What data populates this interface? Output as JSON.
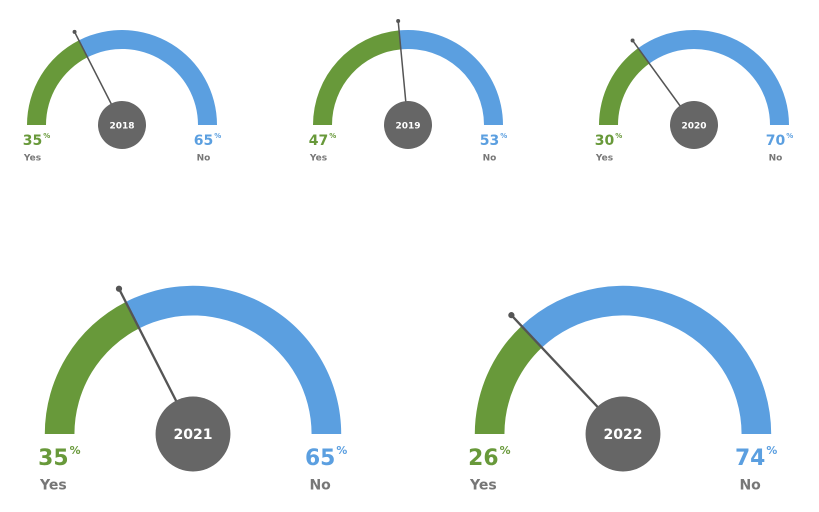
{
  "chart_data": [
    {
      "type": "gauge",
      "title": "2018",
      "categories": [
        "Yes",
        "No"
      ],
      "values": [
        35,
        65
      ],
      "colors": [
        "#68993a",
        "#5b9fe0"
      ],
      "unit": "%"
    },
    {
      "type": "gauge",
      "title": "2019",
      "categories": [
        "Yes",
        "No"
      ],
      "values": [
        47,
        53
      ],
      "colors": [
        "#68993a",
        "#5b9fe0"
      ],
      "unit": "%"
    },
    {
      "type": "gauge",
      "title": "2020",
      "categories": [
        "Yes",
        "No"
      ],
      "values": [
        30,
        70
      ],
      "colors": [
        "#68993a",
        "#5b9fe0"
      ],
      "unit": "%"
    },
    {
      "type": "gauge",
      "title": "2021",
      "categories": [
        "Yes",
        "No"
      ],
      "values": [
        35,
        65
      ],
      "colors": [
        "#68993a",
        "#5b9fe0"
      ],
      "unit": "%"
    },
    {
      "type": "gauge",
      "title": "2022",
      "categories": [
        "Yes",
        "No"
      ],
      "values": [
        26,
        74
      ],
      "colors": [
        "#68993a",
        "#5b9fe0"
      ],
      "unit": "%"
    }
  ]
}
